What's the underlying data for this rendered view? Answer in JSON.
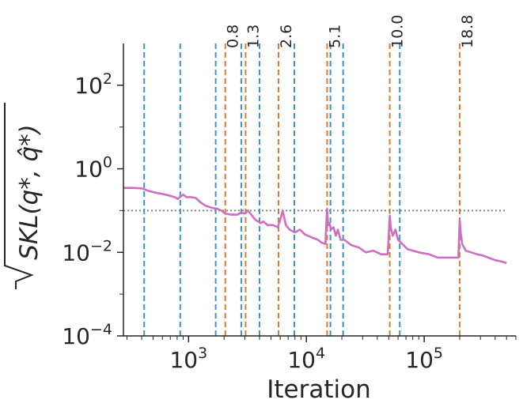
{
  "chart_data": {
    "type": "line",
    "xlabel": "Iteration",
    "ylabel": "SKL(q*, q̂*)",
    "xscale": "log",
    "yscale": "log",
    "xlim": [
      280,
      600000
    ],
    "ylim": [
      0.0001,
      1000
    ],
    "x_ticks": [
      {
        "value": 1000,
        "base": "10",
        "exp": "3"
      },
      {
        "value": 10000,
        "base": "10",
        "exp": "4"
      },
      {
        "value": 100000,
        "base": "10",
        "exp": "5"
      }
    ],
    "y_ticks": [
      {
        "value": 100,
        "base": "10",
        "exp": "2"
      },
      {
        "value": 1,
        "base": "10",
        "exp": "0"
      },
      {
        "value": 0.01,
        "base": "10",
        "exp": "−2"
      },
      {
        "value": 0.0001,
        "base": "10",
        "exp": "−4"
      }
    ],
    "threshold": {
      "y": 0.1,
      "color": "#808080",
      "style": "dotted"
    },
    "series": [
      {
        "color": "#cc6fbf",
        "points": [
          [
            280,
            0.35
          ],
          [
            330,
            0.35
          ],
          [
            400,
            0.34
          ],
          [
            450,
            0.3
          ],
          [
            520,
            0.27
          ],
          [
            600,
            0.25
          ],
          [
            680,
            0.23
          ],
          [
            760,
            0.21
          ],
          [
            810,
            0.19
          ],
          [
            860,
            0.22
          ],
          [
            900,
            0.24
          ],
          [
            960,
            0.21
          ],
          [
            1050,
            0.21
          ],
          [
            1150,
            0.2
          ],
          [
            1250,
            0.16
          ],
          [
            1400,
            0.13
          ],
          [
            1600,
            0.115
          ],
          [
            1750,
            0.11
          ],
          [
            1900,
            0.1
          ],
          [
            2050,
            0.085
          ],
          [
            2300,
            0.08
          ],
          [
            2600,
            0.08
          ],
          [
            2800,
            0.09
          ],
          [
            3000,
            0.085
          ],
          [
            3200,
            0.1
          ],
          [
            3400,
            0.08
          ],
          [
            3700,
            0.06
          ],
          [
            4100,
            0.05
          ],
          [
            4300,
            0.055
          ],
          [
            4700,
            0.045
          ],
          [
            5200,
            0.045
          ],
          [
            5700,
            0.04
          ],
          [
            6000,
            0.06
          ],
          [
            6300,
            0.1
          ],
          [
            6700,
            0.045
          ],
          [
            7200,
            0.035
          ],
          [
            8000,
            0.03
          ],
          [
            8800,
            0.035
          ],
          [
            9700,
            0.027
          ],
          [
            11000,
            0.023
          ],
          [
            12500,
            0.02
          ],
          [
            13500,
            0.017
          ],
          [
            14500,
            0.016
          ],
          [
            15000,
            0.11
          ],
          [
            15300,
            0.045
          ],
          [
            15700,
            0.05
          ],
          [
            16200,
            0.035
          ],
          [
            17000,
            0.04
          ],
          [
            17800,
            0.025
          ],
          [
            18500,
            0.035
          ],
          [
            19500,
            0.02
          ],
          [
            21000,
            0.02
          ],
          [
            24000,
            0.015
          ],
          [
            28000,
            0.013
          ],
          [
            32000,
            0.01
          ],
          [
            37000,
            0.011
          ],
          [
            43000,
            0.009
          ],
          [
            49000,
            0.009
          ],
          [
            51000,
            0.075
          ],
          [
            52000,
            0.04
          ],
          [
            54000,
            0.025
          ],
          [
            57000,
            0.035
          ],
          [
            60000,
            0.02
          ],
          [
            65000,
            0.016
          ],
          [
            72000,
            0.012
          ],
          [
            80000,
            0.011
          ],
          [
            90000,
            0.01
          ],
          [
            110000,
            0.009
          ],
          [
            130000,
            0.0075
          ],
          [
            160000,
            0.0075
          ],
          [
            195000,
            0.0075
          ],
          [
            200000,
            0.06
          ],
          [
            204000,
            0.03
          ],
          [
            210000,
            0.016
          ],
          [
            225000,
            0.011
          ],
          [
            250000,
            0.01
          ],
          [
            280000,
            0.009
          ],
          [
            310000,
            0.0085
          ],
          [
            350000,
            0.0075
          ],
          [
            400000,
            0.0065
          ],
          [
            460000,
            0.006
          ],
          [
            500000,
            0.0055
          ]
        ]
      }
    ],
    "vlines_blue": {
      "color": "#3c95c2",
      "x": [
        420,
        850,
        1700,
        2800,
        4000,
        7900,
        16000,
        20500,
        62000
      ]
    },
    "vlines_orange": {
      "color": "#e07b2c",
      "x": [
        2050,
        3050,
        5800,
        15000,
        51000,
        200000
      ],
      "labels": [
        "0.8",
        "1.3",
        "2.6",
        "5.1",
        "10.0",
        "18.8"
      ]
    }
  }
}
